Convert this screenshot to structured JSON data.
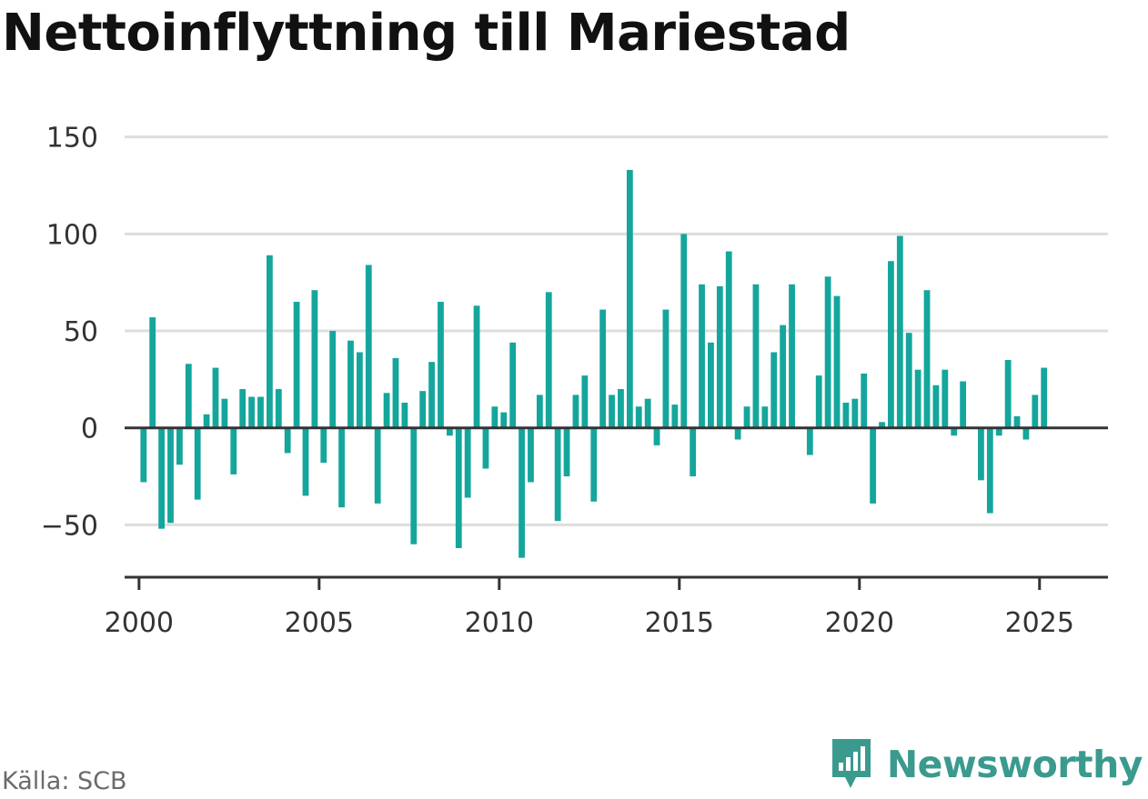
{
  "title": "Nettoinflyttning till Mariestad",
  "source": "Källa: SCB",
  "brand": {
    "name": "Newsworthy",
    "icon": "newsworthy-logo-icon",
    "color": "#3a9a8e"
  },
  "colors": {
    "bar": "#14a69c",
    "grid": "#dddddd",
    "axis": "#333333",
    "zero": "#333333"
  },
  "chart_data": {
    "type": "bar",
    "title": "Nettoinflyttning till Mariestad",
    "xlabel": "",
    "ylabel": "",
    "ylim": [
      -77,
      155
    ],
    "xlim": [
      1999.6,
      2026.9
    ],
    "grid": true,
    "legend": "none",
    "yticks": [
      {
        "value": 150,
        "label": "150"
      },
      {
        "value": 100,
        "label": "100"
      },
      {
        "value": 50,
        "label": "50"
      },
      {
        "value": 0,
        "label": "0"
      },
      {
        "value": -50,
        "label": "−50"
      }
    ],
    "xticks": [
      {
        "value": 2000,
        "label": "2000"
      },
      {
        "value": 2005,
        "label": "2005"
      },
      {
        "value": 2010,
        "label": "2010"
      },
      {
        "value": 2015,
        "label": "2015"
      },
      {
        "value": 2020,
        "label": "2020"
      },
      {
        "value": 2025,
        "label": "2025"
      }
    ],
    "period_start": 2000.125,
    "period_step": 0.25,
    "values": [
      -28,
      57,
      -52,
      -49,
      -19,
      33,
      -37,
      7,
      31,
      15,
      -24,
      20,
      16,
      16,
      89,
      20,
      -13,
      65,
      -35,
      71,
      -18,
      50,
      -41,
      45,
      39,
      84,
      -39,
      18,
      36,
      13,
      -60,
      19,
      34,
      65,
      -4,
      -62,
      -36,
      63,
      -21,
      11,
      8,
      44,
      -67,
      -28,
      17,
      70,
      -48,
      -25,
      17,
      27,
      -38,
      61,
      17,
      20,
      133,
      11,
      15,
      -9,
      61,
      12,
      100,
      -25,
      74,
      44,
      73,
      91,
      -6,
      11,
      74,
      11,
      39,
      53,
      74,
      null,
      -14,
      27,
      78,
      68,
      13,
      15,
      28,
      -39,
      3,
      86,
      99,
      49,
      30,
      71,
      22,
      30,
      -4,
      24,
      null,
      -27,
      -44,
      -4,
      35,
      6,
      -6,
      17,
      31
    ]
  }
}
